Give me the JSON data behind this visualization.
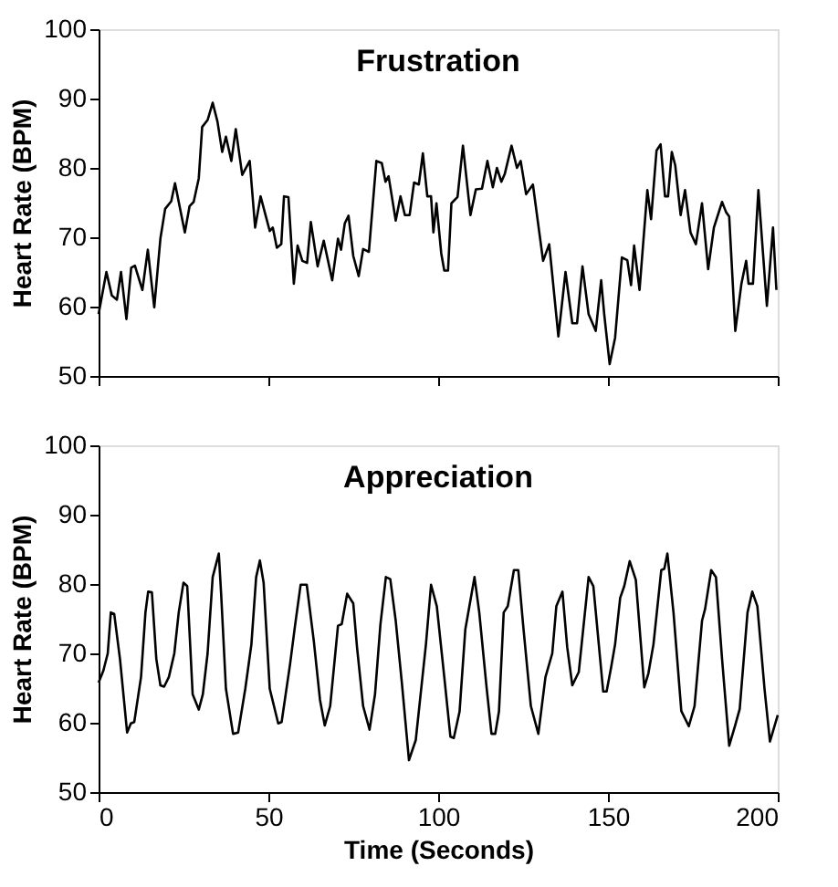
{
  "chart_data": [
    {
      "type": "line",
      "title": "Frustration",
      "ylabel": "Heart Rate (BPM)",
      "xlim": [
        0,
        200
      ],
      "xticks": [
        0,
        50,
        100,
        150,
        200
      ],
      "ylim": [
        50,
        100
      ],
      "yticks": [
        50,
        60,
        70,
        80,
        90,
        100
      ],
      "tick_labels": "y",
      "grid": false,
      "marker": "none",
      "line_style": "solid",
      "series": [
        {
          "color": "#000000",
          "x": [
            0,
            2.3,
            3.9,
            5.4,
            6.6,
            8.2,
            9.6,
            10.7,
            12.9,
            14.5,
            16.4,
            18.2,
            19.6,
            21.4,
            22.5,
            25.4,
            26.8,
            28,
            29.5,
            30.5,
            32.1,
            33.6,
            35,
            36.4,
            37.5,
            39.1,
            40.4,
            42.3,
            44.5,
            46.1,
            47.7,
            50.4,
            51.3,
            52.5,
            53.8,
            54.6,
            55.9,
            57.5,
            58.6,
            60,
            61.4,
            62.5,
            64.5,
            66.3,
            68.8,
            70.5,
            71.4,
            72.5,
            73.6,
            75,
            76.6,
            77.9,
            79.6,
            81.8,
            83.4,
            84.5,
            85.4,
            87.5,
            88.9,
            90.2,
            91.6,
            92.9,
            94.3,
            95.5,
            96.8,
            97.9,
            98.6,
            99.5,
            100.9,
            101.8,
            102.9,
            103.9,
            105.7,
            107.3,
            109.5,
            111.1,
            112.9,
            114.5,
            116.1,
            117.3,
            118.6,
            119.6,
            121.6,
            123.2,
            124.3,
            125.9,
            127.9,
            130.9,
            132.7,
            135.4,
            137.5,
            139.5,
            140.9,
            142.5,
            144.3,
            146.4,
            148,
            148.9,
            150.5,
            152.1,
            154.1,
            155.7,
            156.8,
            157.7,
            159.3,
            161.6,
            162.7,
            164.3,
            165.5,
            166.8,
            167.7,
            168.8,
            169.8,
            171.4,
            172.7,
            174.3,
            175.9,
            177.7,
            179.5,
            181.2,
            183.6,
            184.8,
            185.7,
            187.5,
            189.3,
            190.7,
            191.4,
            192.7,
            194.3,
            195.2,
            196.8,
            198.6,
            199.6
          ],
          "values": [
            58.9,
            65,
            61.6,
            61,
            65,
            58.2,
            65.6,
            65.9,
            62.4,
            68.2,
            59.9,
            69.8,
            74.1,
            75.2,
            77.8,
            70.7,
            74.5,
            75.1,
            78.5,
            85.9,
            86.9,
            89.4,
            86.7,
            82.3,
            84.5,
            81,
            85.6,
            79,
            81,
            71.4,
            75.9,
            70.9,
            71.4,
            68.5,
            69,
            75.9,
            75.8,
            63.3,
            68.8,
            66.6,
            66.3,
            72.2,
            65.8,
            69.5,
            63.8,
            69.8,
            68.2,
            72,
            73.1,
            67.3,
            64.4,
            68.3,
            67.9,
            81,
            80.7,
            78,
            78.8,
            72.4,
            75.9,
            73.2,
            73.2,
            77.9,
            77.6,
            82.1,
            75.9,
            75.9,
            70.7,
            74.9,
            67.7,
            65.2,
            65.2,
            74.9,
            75.8,
            83.2,
            73.2,
            76.9,
            77,
            81,
            77.2,
            80,
            78,
            79.1,
            83.2,
            80,
            81,
            76.2,
            77.6,
            66.6,
            69,
            55.7,
            65,
            57.6,
            57.6,
            65.8,
            58.9,
            56.5,
            63.8,
            58.9,
            51.7,
            55.5,
            67.1,
            66.7,
            63.1,
            68.8,
            62.4,
            76.8,
            72.6,
            82.5,
            83.4,
            75.9,
            75.9,
            82.3,
            80.4,
            73.2,
            76.8,
            70.7,
            69,
            74.9,
            65.4,
            71.4,
            75.1,
            73.6,
            73,
            56.5,
            63.3,
            66.6,
            63.3,
            63.3,
            76.8,
            70.7,
            60.1,
            71.4,
            62.4
          ]
        }
      ]
    },
    {
      "type": "line",
      "title": "Appreciation",
      "xlabel": "Time (Seconds)",
      "ylabel": "Heart Rate (BPM)",
      "xlim": [
        0,
        200
      ],
      "xticks": [
        0,
        50,
        100,
        150,
        200
      ],
      "ylim": [
        50,
        100
      ],
      "yticks": [
        50,
        60,
        70,
        80,
        90,
        100
      ],
      "grid": false,
      "marker": "none",
      "line_style": "solid",
      "series": [
        {
          "color": "#000000",
          "x": [
            0,
            1.4,
            2.7,
            3.6,
            4.6,
            6.3,
            8.4,
            9.5,
            10.5,
            12.5,
            13.8,
            14.6,
            15.7,
            17,
            18.2,
            19.3,
            20.7,
            22.3,
            23.6,
            25,
            26.1,
            27.7,
            29.5,
            30.7,
            32.1,
            33.6,
            35.4,
            36.1,
            37.5,
            39.6,
            41.1,
            43.2,
            45,
            46.4,
            47.5,
            48.6,
            50.4,
            52.9,
            53.9,
            56.4,
            57.9,
            59.5,
            61.3,
            63.4,
            65.2,
            66.6,
            68.2,
            70.5,
            71.6,
            73.2,
            75,
            76.1,
            77.9,
            79.8,
            81.4,
            83,
            84.6,
            85.9,
            87.5,
            89.3,
            91.4,
            93.4,
            96.4,
            97.9,
            99.6,
            101.8,
            103.6,
            104.6,
            106.3,
            108,
            110.7,
            112.1,
            114.3,
            115.7,
            116.8,
            117.9,
            119.3,
            120.5,
            122.3,
            123.6,
            125,
            127.3,
            129.5,
            131.6,
            133.6,
            134.8,
            136.6,
            138,
            139.5,
            141.4,
            144.3,
            145.7,
            148.6,
            149.6,
            150.9,
            152.1,
            153.6,
            154.8,
            156.4,
            158.2,
            160.7,
            161.9,
            163.4,
            165.7,
            166.6,
            167.5,
            169.3,
            171.6,
            173.8,
            175.5,
            177.7,
            178.6,
            180.4,
            181.8,
            183.6,
            185.7,
            187.5,
            188.8,
            191.1,
            192.5,
            194,
            196.1,
            197.7,
            200
          ],
          "values": [
            65.8,
            67.5,
            70,
            75.9,
            75.7,
            69.2,
            58.6,
            59.9,
            60.1,
            66.6,
            75.9,
            78.9,
            78.8,
            69.2,
            65.4,
            65.2,
            66.6,
            70,
            75.9,
            80.2,
            79.7,
            64.1,
            61.9,
            64.1,
            70,
            81,
            84.4,
            78.5,
            64.9,
            58.4,
            58.6,
            64.9,
            71.3,
            81,
            83.4,
            80.2,
            64.9,
            59.9,
            60.1,
            68.5,
            74.2,
            79.9,
            79.9,
            71.7,
            63.3,
            59.6,
            62.4,
            74,
            74.2,
            78.6,
            77.2,
            70.9,
            62.4,
            59,
            64.1,
            74.2,
            81,
            80.7,
            74.7,
            65.8,
            54.6,
            57.5,
            71.3,
            79.9,
            76.8,
            66.6,
            58,
            57.8,
            61.6,
            73.5,
            81,
            75.9,
            64.9,
            58.4,
            58.4,
            61.6,
            75.9,
            76.8,
            82,
            82,
            74.2,
            62.4,
            58.4,
            66.6,
            70,
            76.8,
            78.9,
            70.9,
            65.4,
            67.3,
            81,
            79.7,
            64.5,
            64.5,
            67.9,
            71.3,
            78,
            79.7,
            83.3,
            80.6,
            65.1,
            67.1,
            71.3,
            82,
            82.2,
            84.4,
            75.9,
            61.7,
            59.5,
            62.4,
            74.7,
            76.4,
            82,
            81,
            69.2,
            56.7,
            59.7,
            62,
            75.9,
            78.9,
            76.8,
            64.9,
            57.3,
            61.1
          ]
        }
      ]
    }
  ]
}
